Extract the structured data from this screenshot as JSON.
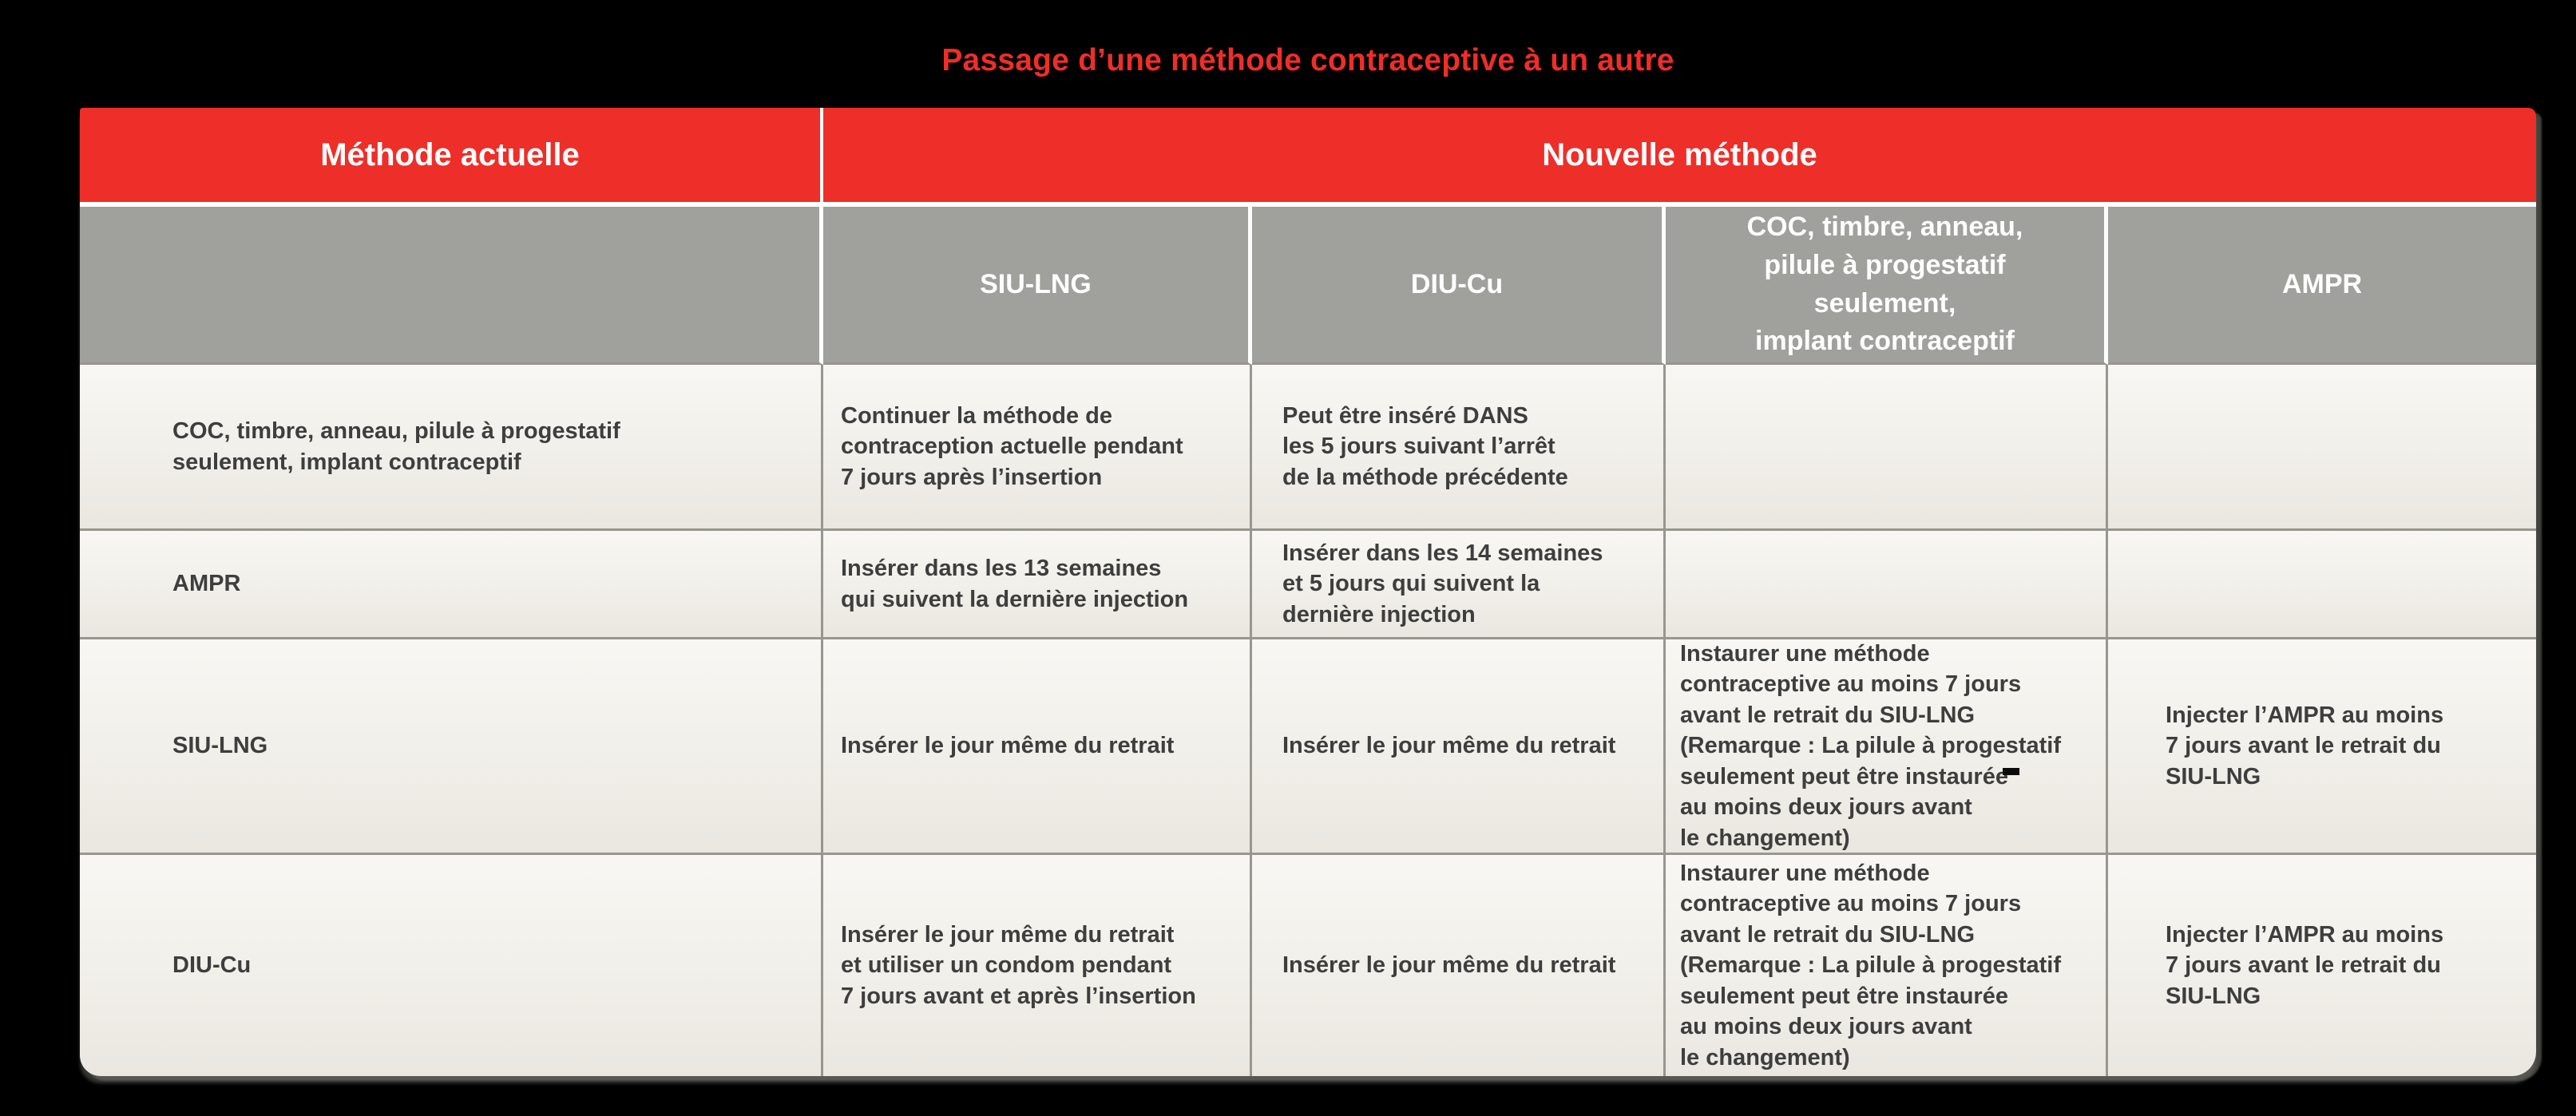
{
  "title": "Passage d’une méthode contraceptive à un autre",
  "colors": {
    "background": "#000000",
    "header_red": "#ee2e28",
    "header_gray": "#a0a09d",
    "grid_line": "#97968f",
    "cell_background": "#f1efe9",
    "body_text": "#3d3e3d",
    "header_text": "#ffffff"
  },
  "table": {
    "header": {
      "current_method": "Méthode actuelle",
      "new_method": "Nouvelle méthode"
    },
    "columns": [
      "SIU-LNG",
      "DIU-Cu",
      "COC, timbre, anneau,\npilule à progestatif\nseulement,\nimplant contraceptif",
      "AMPR"
    ],
    "rows": [
      {
        "label": "COC, timbre, anneau, pilule à progestatif\nseulement, implant contraceptif",
        "siu_lng": "Continuer la méthode de\ncontraception actuelle pendant\n7 jours après l’insertion",
        "diu_cu": "Peut être inséré DANS\nles 5 jours suivant l’arrêt\nde la méthode précédente",
        "coc": "",
        "ampr": ""
      },
      {
        "label": "AMPR",
        "siu_lng": "Insérer dans les 13 semaines\nqui suivent la dernière injection",
        "diu_cu": "Insérer dans les 14 semaines\net 5 jours qui suivent la\ndernière injection",
        "coc": "",
        "ampr": ""
      },
      {
        "label": "SIU-LNG",
        "siu_lng": "Insérer le jour même du retrait",
        "diu_cu": "Insérer le jour même du retrait",
        "coc": "Instaurer une méthode\ncontraceptive au moins 7 jours\navant le retrait du SIU-LNG\n(Remarque : La pilule à progestatif\nseulement peut être instaurée\nau moins deux jours avant\nle changement)",
        "ampr": "Injecter l’AMPR au moins\n7 jours avant le retrait du\nSIU-LNG"
      },
      {
        "label": "DIU-Cu",
        "siu_lng": "Insérer le jour même du retrait\net utiliser un condom pendant\n7 jours avant et après l’insertion",
        "diu_cu": "Insérer le jour même du retrait",
        "coc": "Instaurer une méthode\ncontraceptive au moins 7 jours\navant le retrait du SIU-LNG\n(Remarque : La pilule à progestatif\nseulement peut être instaurée\nau moins deux jours avant\nle changement)",
        "ampr": "Injecter l’AMPR au moins\n7 jours avant le retrait du\nSIU-LNG"
      }
    ]
  }
}
